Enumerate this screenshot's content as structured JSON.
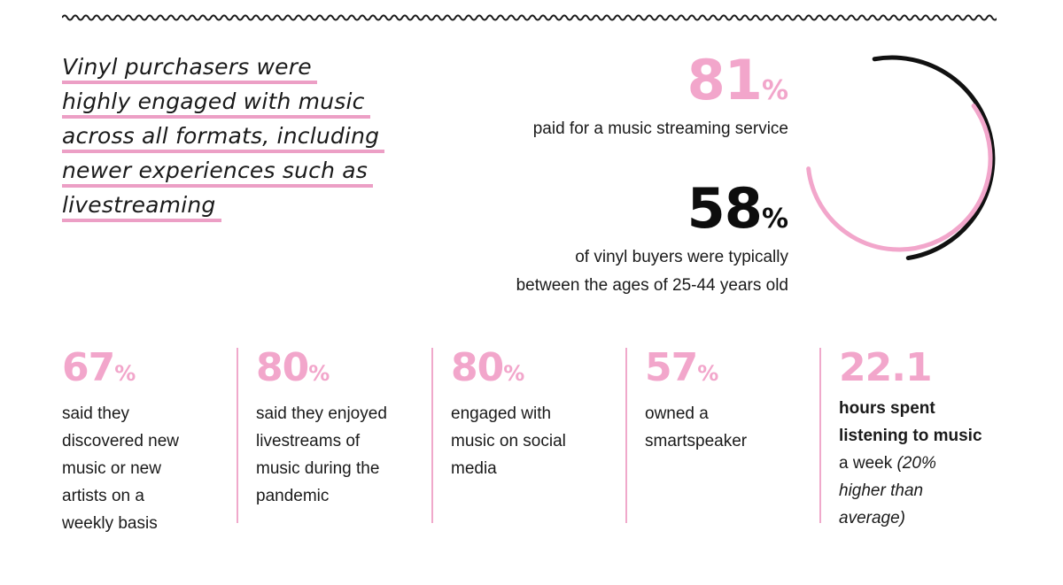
{
  "headline": {
    "lines": [
      "Vinyl purchasers were",
      "highly engaged with music",
      "across all formats, including",
      "newer experiences such as",
      "livestreaming"
    ]
  },
  "stat_streaming": {
    "value": "81",
    "unit": "%",
    "desc": "paid for a music streaming service"
  },
  "stat_age": {
    "value": "58",
    "unit": "%",
    "desc_line1": "of vinyl buyers were typically",
    "desc_line2": "between the ages of 25-44 years old"
  },
  "columns": [
    {
      "value": "67",
      "unit": "%",
      "lines": [
        "said they",
        "discovered new",
        "music or new",
        "artists on a",
        "weekly basis"
      ]
    },
    {
      "value": "80",
      "unit": "%",
      "lines": [
        "said they enjoyed",
        "livestreams of",
        "music during the",
        "pandemic"
      ]
    },
    {
      "value": "80",
      "unit": "%",
      "lines": [
        "engaged with",
        "music on social",
        "media"
      ]
    },
    {
      "value": "57",
      "unit": "%",
      "lines": [
        "owned a",
        "smartspeaker"
      ]
    },
    {
      "value": "22.1",
      "bold_lines": [
        "hours spent",
        "listening to music"
      ],
      "plain": "a week ",
      "italic_lines": [
        "(20%",
        "higher than",
        "average)"
      ]
    }
  ],
  "colors": {
    "accent_pink": "#f2a6cb",
    "text_dark": "#1a1a1a"
  }
}
